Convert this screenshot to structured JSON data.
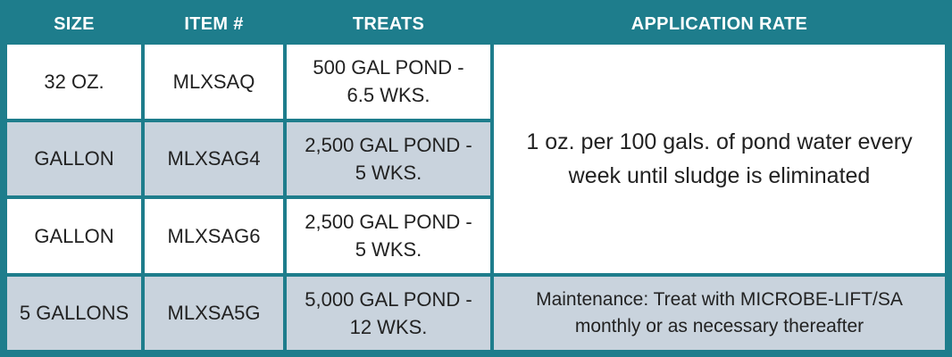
{
  "headers": {
    "size": "SIZE",
    "item": "ITEM #",
    "treats": "TREATS",
    "rate": "APPLICATION RATE"
  },
  "rows": [
    {
      "size": "32 OZ.",
      "item": "MLXSAQ",
      "treats_l1": "500 GAL POND -",
      "treats_l2": "6.5 WKS."
    },
    {
      "size": "GALLON",
      "item": "MLXSAG4",
      "treats_l1": "2,500 GAL POND -",
      "treats_l2": "5 WKS."
    },
    {
      "size": "GALLON",
      "item": "MLXSAG6",
      "treats_l1": "2,500 GAL POND -",
      "treats_l2": "5 WKS."
    },
    {
      "size": "5 GALLONS",
      "item": "MLXSA5G",
      "treats_l1": "5,000 GAL POND -",
      "treats_l2": "12 WKS."
    }
  ],
  "application_rate": {
    "main_l1": "1 oz. per 100 gals. of  pond water every",
    "main_l2": "week until sludge is eliminated",
    "maintenance_l1": "Maintenance: Treat with MICROBE-LIFT/SA",
    "maintenance_l2": "monthly or as necessary thereafter"
  },
  "colors": {
    "header_bg": "#1e7d8c",
    "row_alt_bg": "#c9d3dd",
    "row_bg": "#ffffff"
  }
}
